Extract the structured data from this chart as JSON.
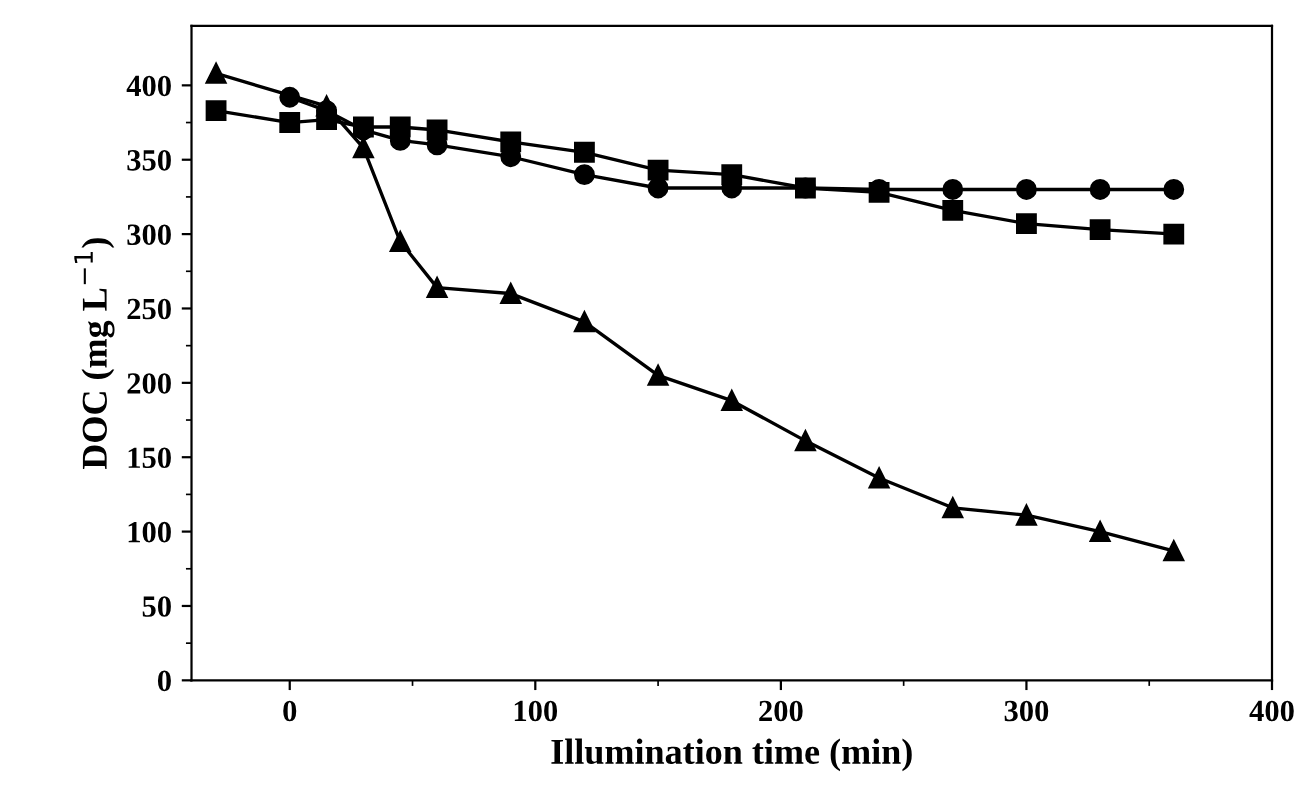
{
  "chart_data": {
    "type": "line",
    "xlabel": "Illumination time (min)",
    "ylabel": "DOC (mg L$^{−1}$)",
    "xlim": [
      -40,
      400
    ],
    "ylim": [
      0,
      440
    ],
    "xticks": [
      0,
      100,
      200,
      300,
      400
    ],
    "yticks": [
      0,
      50,
      100,
      150,
      200,
      250,
      300,
      350,
      400
    ],
    "grid": false,
    "legend": false,
    "line_style": "solid",
    "series": [
      {
        "color": "#000000",
        "marker": "square",
        "x": [
          -30,
          0,
          15,
          30,
          45,
          60,
          90,
          120,
          150,
          180,
          210,
          240,
          270,
          300,
          330,
          360
        ],
        "values": [
          383,
          375,
          377,
          372,
          372,
          370,
          362,
          355,
          343,
          340,
          331,
          328,
          316,
          307,
          303,
          300
        ]
      },
      {
        "color": "#000000",
        "marker": "circle",
        "x": [
          0,
          15,
          30,
          45,
          60,
          90,
          120,
          150,
          180,
          210,
          240,
          270,
          300,
          330,
          360
        ],
        "values": [
          392,
          383,
          370,
          363,
          360,
          352,
          340,
          331,
          331,
          331,
          330,
          330,
          330,
          330,
          330
        ]
      },
      {
        "color": "#000000",
        "marker": "triangle",
        "x": [
          -30,
          15,
          30,
          45,
          60,
          90,
          120,
          150,
          180,
          210,
          240,
          270,
          300,
          330,
          360
        ],
        "values": [
          408,
          386,
          358,
          295,
          264,
          260,
          241,
          205,
          188,
          161,
          136,
          116,
          111,
          100,
          87
        ]
      }
    ]
  }
}
